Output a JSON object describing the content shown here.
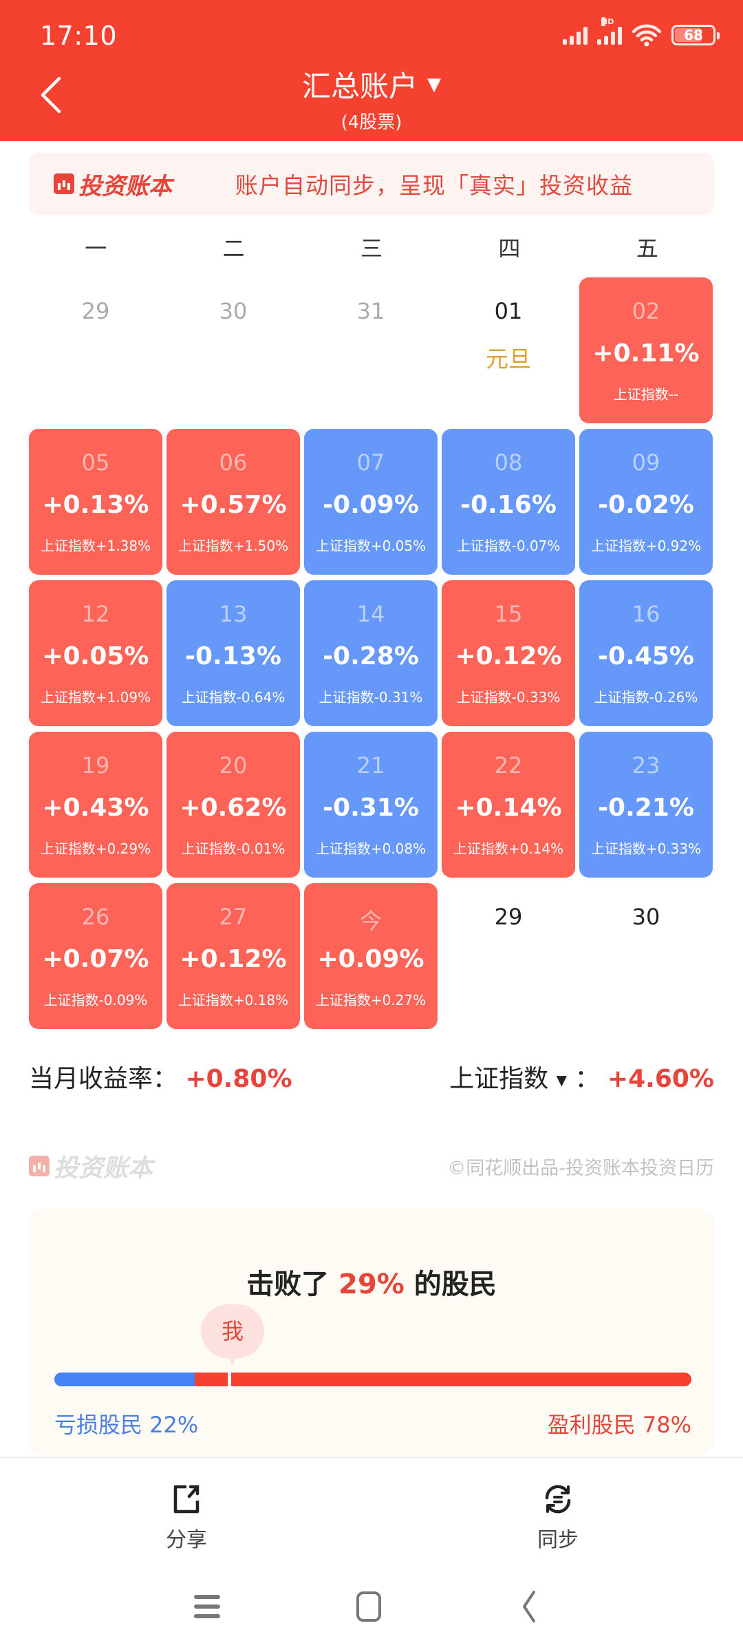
{
  "status_bar": {
    "time": "17:10",
    "network_label": "HD",
    "battery_level": "68"
  },
  "header": {
    "title": "汇总账户",
    "title_caret": "▼",
    "subtitle": "(4股票)",
    "back_icon": "chevron-left-icon"
  },
  "banner": {
    "brand": "投资账本",
    "text": "账户自动同步，呈现「真实」投资收益"
  },
  "weekdays": [
    "一",
    "二",
    "三",
    "四",
    "五"
  ],
  "calendar": [
    {
      "day": "29",
      "type": "plain"
    },
    {
      "day": "30",
      "type": "plain"
    },
    {
      "day": "31",
      "type": "plain"
    },
    {
      "day": "01",
      "type": "plain-current",
      "holiday": "元旦"
    },
    {
      "day": "02",
      "type": "up",
      "pct": "+0.11%",
      "index": "上证指数--"
    },
    {
      "day": "05",
      "type": "up",
      "pct": "+0.13%",
      "index": "上证指数+1.38%"
    },
    {
      "day": "06",
      "type": "up",
      "pct": "+0.57%",
      "index": "上证指数+1.50%"
    },
    {
      "day": "07",
      "type": "down",
      "pct": "-0.09%",
      "index": "上证指数+0.05%"
    },
    {
      "day": "08",
      "type": "down",
      "pct": "-0.16%",
      "index": "上证指数-0.07%"
    },
    {
      "day": "09",
      "type": "down",
      "pct": "-0.02%",
      "index": "上证指数+0.92%"
    },
    {
      "day": "12",
      "type": "up",
      "pct": "+0.05%",
      "index": "上证指数+1.09%"
    },
    {
      "day": "13",
      "type": "down",
      "pct": "-0.13%",
      "index": "上证指数-0.64%"
    },
    {
      "day": "14",
      "type": "down",
      "pct": "-0.28%",
      "index": "上证指数-0.31%"
    },
    {
      "day": "15",
      "type": "up",
      "pct": "+0.12%",
      "index": "上证指数-0.33%"
    },
    {
      "day": "16",
      "type": "down",
      "pct": "-0.45%",
      "index": "上证指数-0.26%"
    },
    {
      "day": "19",
      "type": "up",
      "pct": "+0.43%",
      "index": "上证指数+0.29%"
    },
    {
      "day": "20",
      "type": "up",
      "pct": "+0.62%",
      "index": "上证指数-0.01%"
    },
    {
      "day": "21",
      "type": "down",
      "pct": "-0.31%",
      "index": "上证指数+0.08%"
    },
    {
      "day": "22",
      "type": "up",
      "pct": "+0.14%",
      "index": "上证指数+0.14%"
    },
    {
      "day": "23",
      "type": "down",
      "pct": "-0.21%",
      "index": "上证指数+0.33%"
    },
    {
      "day": "26",
      "type": "up",
      "pct": "+0.07%",
      "index": "上证指数-0.09%"
    },
    {
      "day": "27",
      "type": "up",
      "pct": "+0.12%",
      "index": "上证指数+0.18%"
    },
    {
      "day": "今",
      "type": "up",
      "pct": "+0.09%",
      "index": "上证指数+0.27%"
    },
    {
      "day": "29",
      "type": "plain-current"
    },
    {
      "day": "30",
      "type": "plain-current"
    }
  ],
  "summary": {
    "monthly_label": "当月收益率：",
    "monthly_value": "+0.80%",
    "index_label": "上证指数",
    "index_caret": "▼",
    "index_colon": "：",
    "index_value": "+4.60%"
  },
  "footer_brand": {
    "brand": "投资账本",
    "copyright": "©同花顺出品-投资账本投资日历"
  },
  "beat": {
    "prefix": "击败了 ",
    "percent": "29%",
    "suffix": " 的股民",
    "me_label": "我",
    "loss_label": "亏损股民 22%",
    "profit_label": "盈利股民 78%",
    "loss_share": 22,
    "profit_share": 78
  },
  "actions": {
    "share_label": "分享",
    "sync_label": "同步"
  },
  "colors": {
    "header_red": "#F5412F",
    "up_tile": "#FD6357",
    "down_tile": "#6698FA",
    "accent_red": "#E8453A",
    "loss_blue": "#4482F5",
    "holiday_gold": "#E0A030"
  }
}
